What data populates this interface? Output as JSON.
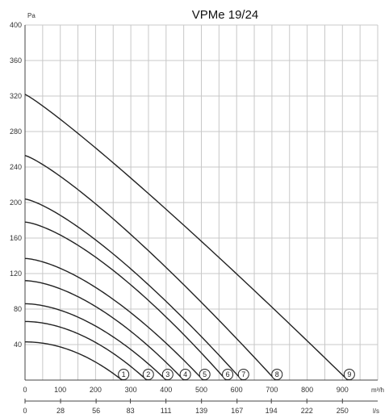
{
  "chart_data": {
    "type": "line",
    "title": "VPMe 19/24",
    "ylabel": "Pa",
    "xlabel": "m³/h",
    "x2label": "l/s",
    "ylim": [
      0,
      400
    ],
    "xlim": [
      0,
      1000
    ],
    "yticks": [
      40,
      80,
      120,
      160,
      200,
      240,
      280,
      320,
      360,
      400
    ],
    "xticks": [
      0,
      100,
      200,
      300,
      400,
      500,
      600,
      700,
      800,
      900
    ],
    "x2ticks": [
      {
        "value": 0,
        "label": "0"
      },
      {
        "value": 100.8,
        "label": "28"
      },
      {
        "value": 201.6,
        "label": "56"
      },
      {
        "value": 298.8,
        "label": "83"
      },
      {
        "value": 399.6,
        "label": "111"
      },
      {
        "value": 500.4,
        "label": "139"
      },
      {
        "value": 601.2,
        "label": "167"
      },
      {
        "value": 698.4,
        "label": "194"
      },
      {
        "value": 799.2,
        "label": "222"
      },
      {
        "value": 900,
        "label": "250"
      }
    ],
    "grid": true,
    "colors": {
      "curve": "#222222",
      "grid": "#c8c8c8",
      "axis": "#444444"
    },
    "series": [
      {
        "label": "1",
        "p0": 43,
        "qmax": 275
      },
      {
        "label": "2",
        "p0": 66,
        "qmax": 345
      },
      {
        "label": "3",
        "p0": 86,
        "qmax": 400
      },
      {
        "label": "4",
        "p0": 112,
        "qmax": 450
      },
      {
        "label": "5",
        "p0": 137,
        "qmax": 505
      },
      {
        "label": "6",
        "p0": 178,
        "qmax": 570
      },
      {
        "label": "7",
        "p0": 204,
        "qmax": 615
      },
      {
        "label": "8",
        "p0": 253,
        "qmax": 710
      },
      {
        "label": "9",
        "p0": 322,
        "qmax": 915
      }
    ]
  }
}
